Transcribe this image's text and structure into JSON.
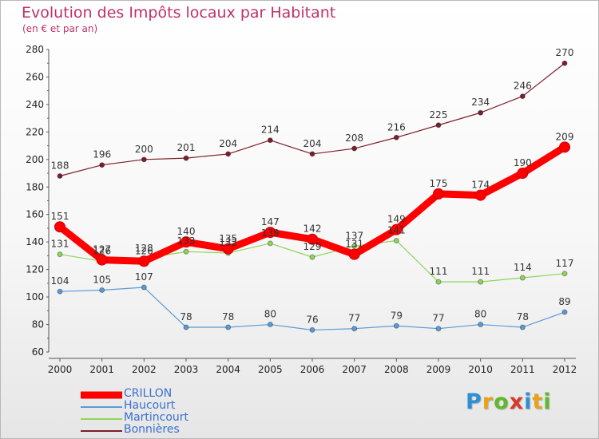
{
  "header": {
    "title": "Evolution des Impôts locaux par Habitant",
    "subtitle": "(en € et par an)"
  },
  "logo": {
    "text": "Proxiti",
    "letters": [
      "P",
      "r",
      "o",
      "x",
      "i",
      "t",
      "i"
    ],
    "colors": [
      "#2d8fd4",
      "#e8a21a",
      "#5fb82e",
      "#d83a2a",
      "#2d8fd4",
      "#e8a21a",
      "#5fb82e"
    ]
  },
  "chart_data": {
    "type": "line",
    "categories": [
      "2000",
      "2001",
      "2002",
      "2003",
      "2004",
      "2005",
      "2006",
      "2007",
      "2008",
      "2009",
      "2010",
      "2011",
      "2012"
    ],
    "ylim": [
      60,
      280
    ],
    "yticks": [
      60,
      80,
      100,
      120,
      140,
      160,
      180,
      200,
      220,
      240,
      260,
      280
    ],
    "grid": false,
    "legend_position": "bottom-left",
    "series": [
      {
        "name": "Bonnières",
        "color": "#7b1f2a",
        "values": [
          188,
          196,
          200,
          201,
          204,
          214,
          204,
          208,
          216,
          225,
          234,
          246,
          270
        ]
      },
      {
        "name": "Haucourt",
        "color": "#5b9bd5",
        "values": [
          104,
          105,
          107,
          78,
          78,
          80,
          76,
          77,
          79,
          77,
          80,
          78,
          89
        ]
      },
      {
        "name": "Martincourt",
        "color": "#8ed45a",
        "values": [
          131,
          126,
          128,
          133,
          132,
          139,
          129,
          137,
          141,
          111,
          111,
          114,
          117
        ]
      },
      {
        "name": "CRILLON",
        "color": "#ff0000",
        "values": [
          151,
          127,
          126,
          140,
          135,
          147,
          142,
          131,
          149,
          175,
          174,
          190,
          209
        ]
      }
    ],
    "legend": [
      "CRILLON",
      "Haucourt",
      "Martincourt",
      "Bonnières"
    ]
  }
}
